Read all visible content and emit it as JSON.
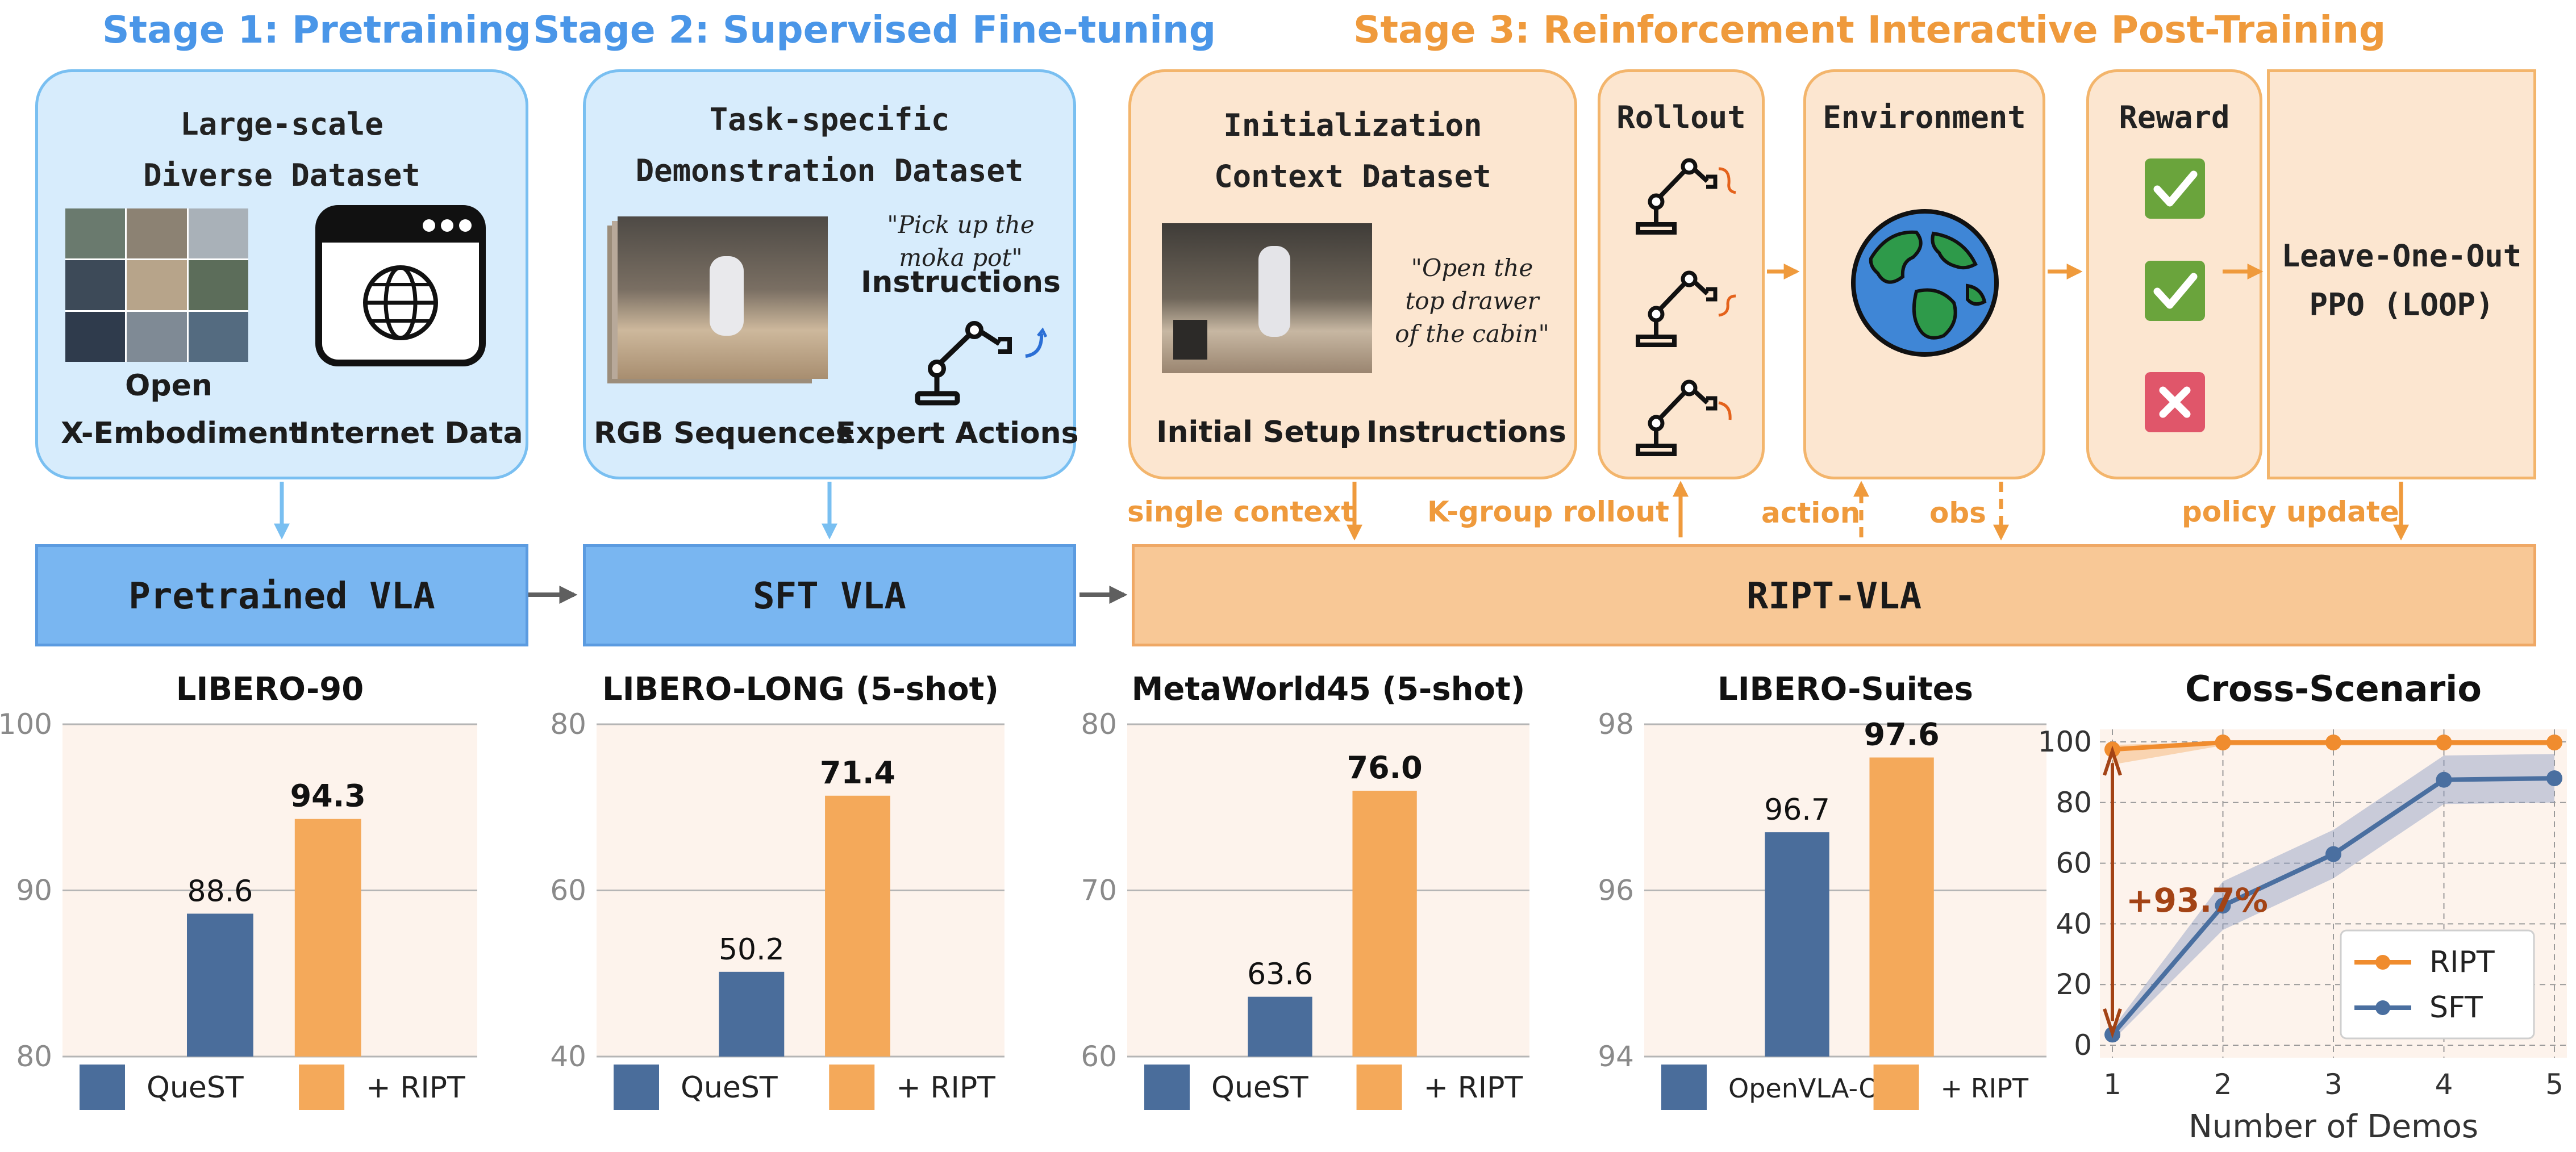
{
  "colors": {
    "blue_accent": "#4a96e8",
    "orange_accent": "#ef9a3c",
    "quest_bar": "#4a6d9b",
    "ript_bar": "#f4a95a",
    "plot_bg": "#fdf3ec",
    "sft_line": "#4a6fa0",
    "ript_line": "#f08c2e",
    "gain": "#a34315"
  },
  "stages": {
    "stage1_title": "Stage 1: Pretraining",
    "stage2_title": "Stage 2: Supervised Fine-tuning",
    "stage3_title": "Stage 3: Reinforcement Interactive Post-Training"
  },
  "stage1_box": {
    "title_line1": "Large-scale",
    "title_line2": "Diverse Dataset",
    "caption_left_line1": "Open",
    "caption_left_line2": "X-Embodiment",
    "caption_right": "Internet Data",
    "icons": [
      "robot-photo-grid-icon",
      "browser-globe-icon"
    ]
  },
  "stage2_box": {
    "title_line1": "Task-specific",
    "title_line2": "Demonstration Dataset",
    "quote_line1": "\"Pick up the",
    "quote_line2": "moka pot\"",
    "instructions": "Instructions",
    "caption_left": "RGB Sequences",
    "caption_right": "Expert Actions",
    "icons": [
      "rgb-frame-stack-icon",
      "robot-arm-icon"
    ]
  },
  "stage3_init": {
    "title_line1": "Initialization",
    "title_line2": "Context Dataset",
    "quote_line1": "\"Open the",
    "quote_line2": "top drawer",
    "quote_line3": "of the cabin\"",
    "caption_left": "Initial Setup",
    "caption_right": "Instructions"
  },
  "stage3_rollout": {
    "title": "Rollout",
    "icons": [
      "robot-arm-icon",
      "robot-arm-icon",
      "robot-arm-icon"
    ]
  },
  "stage3_env": {
    "title": "Environment",
    "icon": "earth-globe-icon"
  },
  "stage3_reward": {
    "title": "Reward",
    "icons": [
      "check-icon",
      "check-icon",
      "cross-icon"
    ]
  },
  "stage3_loop": {
    "line1": "Leave-One-Out",
    "line2": "PPO (LOOP)"
  },
  "flow_labels": {
    "single_context": "single context",
    "k_group": "K-group rollout",
    "action": "action",
    "obs": "obs",
    "policy_update": "policy update"
  },
  "models": {
    "pretrained": "Pretrained VLA",
    "sft": "SFT VLA",
    "ript": "RIPT-VLA"
  },
  "chart_data": [
    {
      "type": "bar",
      "title": "LIBERO-90",
      "categories": [
        "QueST",
        "+ RIPT"
      ],
      "values": [
        88.6,
        94.3
      ],
      "ylim": [
        80,
        100
      ],
      "yticks": [
        80,
        90,
        100
      ],
      "value_labels": [
        "88.6",
        "94.3"
      ],
      "legend": [
        "QueST",
        "+ RIPT"
      ]
    },
    {
      "type": "bar",
      "title": "LIBERO-LONG (5-shot)",
      "categories": [
        "QueST",
        "+ RIPT"
      ],
      "values": [
        50.2,
        71.4
      ],
      "ylim": [
        40,
        80
      ],
      "yticks": [
        40,
        60,
        80
      ],
      "value_labels": [
        "50.2",
        "71.4"
      ],
      "legend": [
        "QueST",
        "+ RIPT"
      ]
    },
    {
      "type": "bar",
      "title": "MetaWorld45 (5-shot)",
      "categories": [
        "QueST",
        "+ RIPT"
      ],
      "values": [
        63.6,
        76.0
      ],
      "ylim": [
        60,
        80
      ],
      "yticks": [
        60,
        70,
        80
      ],
      "value_labels": [
        "63.6",
        "76.0"
      ],
      "legend": [
        "QueST",
        "+ RIPT"
      ]
    },
    {
      "type": "bar",
      "title": "LIBERO-Suites",
      "categories": [
        "OpenVLA-OFT",
        "+ RIPT"
      ],
      "values": [
        96.7,
        97.6
      ],
      "ylim": [
        94,
        98
      ],
      "yticks": [
        94,
        96,
        98
      ],
      "value_labels": [
        "96.7",
        "97.6"
      ],
      "legend": [
        "OpenVLA-OFT",
        "+ RIPT"
      ]
    },
    {
      "type": "line",
      "title": "Cross-Scenario",
      "xlabel": "Number of Demos",
      "x": [
        1,
        2,
        3,
        4,
        5
      ],
      "xlim": [
        1,
        5
      ],
      "ylim": [
        0,
        100
      ],
      "yticks": [
        0,
        20,
        40,
        60,
        80,
        100
      ],
      "grid": true,
      "legend_position": "lower-right",
      "series": [
        {
          "name": "RIPT",
          "values": [
            97.5,
            99.8,
            99.8,
            99.8,
            99.8
          ]
        },
        {
          "name": "SFT",
          "values": [
            3.5,
            46,
            63,
            87.5,
            88
          ]
        }
      ],
      "annotation": "+93.7%"
    }
  ]
}
